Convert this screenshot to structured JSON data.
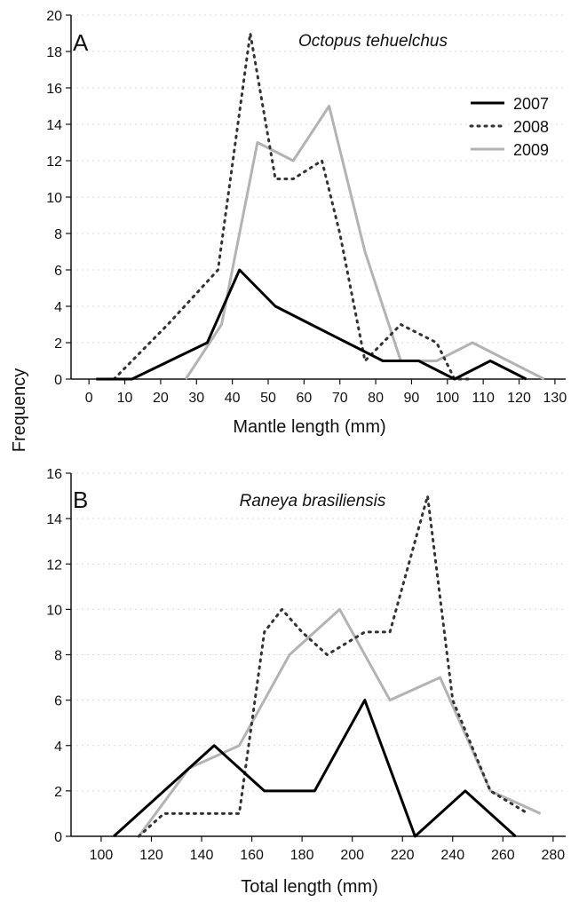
{
  "shared_ylabel": "Frequency",
  "line_colors": {
    "2007": "#000000",
    "2008": "#333333",
    "2009": "#b3b3b3"
  },
  "chart_data": [
    {
      "type": "line",
      "panel": "A",
      "title": "Octopus tehuelchus",
      "xlabel": "Mantle length (mm)",
      "ylabel": "Frequency",
      "xlim": [
        -5,
        133
      ],
      "ylim": [
        0,
        20
      ],
      "xticks": [
        0,
        10,
        20,
        30,
        40,
        50,
        60,
        70,
        80,
        90,
        100,
        110,
        120,
        130
      ],
      "yticks": [
        0,
        2,
        4,
        6,
        8,
        10,
        12,
        14,
        16,
        18,
        20
      ],
      "legend": "top-right",
      "grid": "horizontal dotted",
      "series": [
        {
          "name": "2007",
          "style": "solid",
          "color": "#000000",
          "x": [
            2,
            12,
            33,
            42,
            52,
            62,
            72,
            82,
            87,
            92,
            102,
            112,
            122
          ],
          "y": [
            0,
            0,
            2,
            6,
            4,
            3,
            2,
            1,
            1,
            1,
            0,
            1,
            0
          ]
        },
        {
          "name": "2008",
          "style": "dotted",
          "color": "#333333",
          "x": [
            7,
            12,
            22,
            36,
            45,
            52,
            57,
            65,
            70,
            77,
            87,
            97,
            102,
            107
          ],
          "y": [
            0,
            1,
            3,
            6,
            19,
            11,
            11,
            12,
            8,
            1,
            3,
            2,
            0,
            0
          ]
        },
        {
          "name": "2009",
          "style": "solid",
          "color": "#b3b3b3",
          "x": [
            27,
            37,
            47,
            57,
            67,
            77,
            87,
            97,
            107,
            117,
            127
          ],
          "y": [
            0,
            3,
            13,
            12,
            15,
            7,
            1,
            1,
            2,
            1,
            0
          ]
        }
      ]
    },
    {
      "type": "line",
      "panel": "B",
      "title": "Raneya brasiliensis",
      "xlabel": "Total length (mm)",
      "ylabel": "Frequency",
      "xlim": [
        88,
        285
      ],
      "ylim": [
        0,
        16
      ],
      "xticks": [
        100,
        120,
        140,
        160,
        180,
        200,
        220,
        240,
        260,
        280
      ],
      "yticks": [
        0,
        2,
        4,
        6,
        8,
        10,
        12,
        14,
        16
      ],
      "grid": "horizontal dotted",
      "series": [
        {
          "name": "2007",
          "style": "solid",
          "color": "#000000",
          "x": [
            105,
            145,
            155,
            165,
            185,
            205,
            225,
            245,
            265
          ],
          "y": [
            0,
            4,
            3,
            2,
            2,
            6,
            0,
            2,
            0
          ]
        },
        {
          "name": "2008",
          "style": "dotted",
          "color": "#333333",
          "x": [
            115,
            125,
            135,
            145,
            155,
            165,
            172,
            180,
            190,
            205,
            215,
            230,
            240,
            255,
            270
          ],
          "y": [
            0,
            1,
            1,
            1,
            1,
            9,
            10,
            9,
            8,
            9,
            9,
            15,
            6,
            2,
            1
          ]
        },
        {
          "name": "2009",
          "style": "solid",
          "color": "#b3b3b3",
          "x": [
            115,
            125,
            135,
            155,
            175,
            195,
            215,
            235,
            255,
            275
          ],
          "y": [
            0,
            1.5,
            3,
            4,
            8,
            10,
            6,
            7,
            2,
            1
          ]
        }
      ]
    }
  ]
}
